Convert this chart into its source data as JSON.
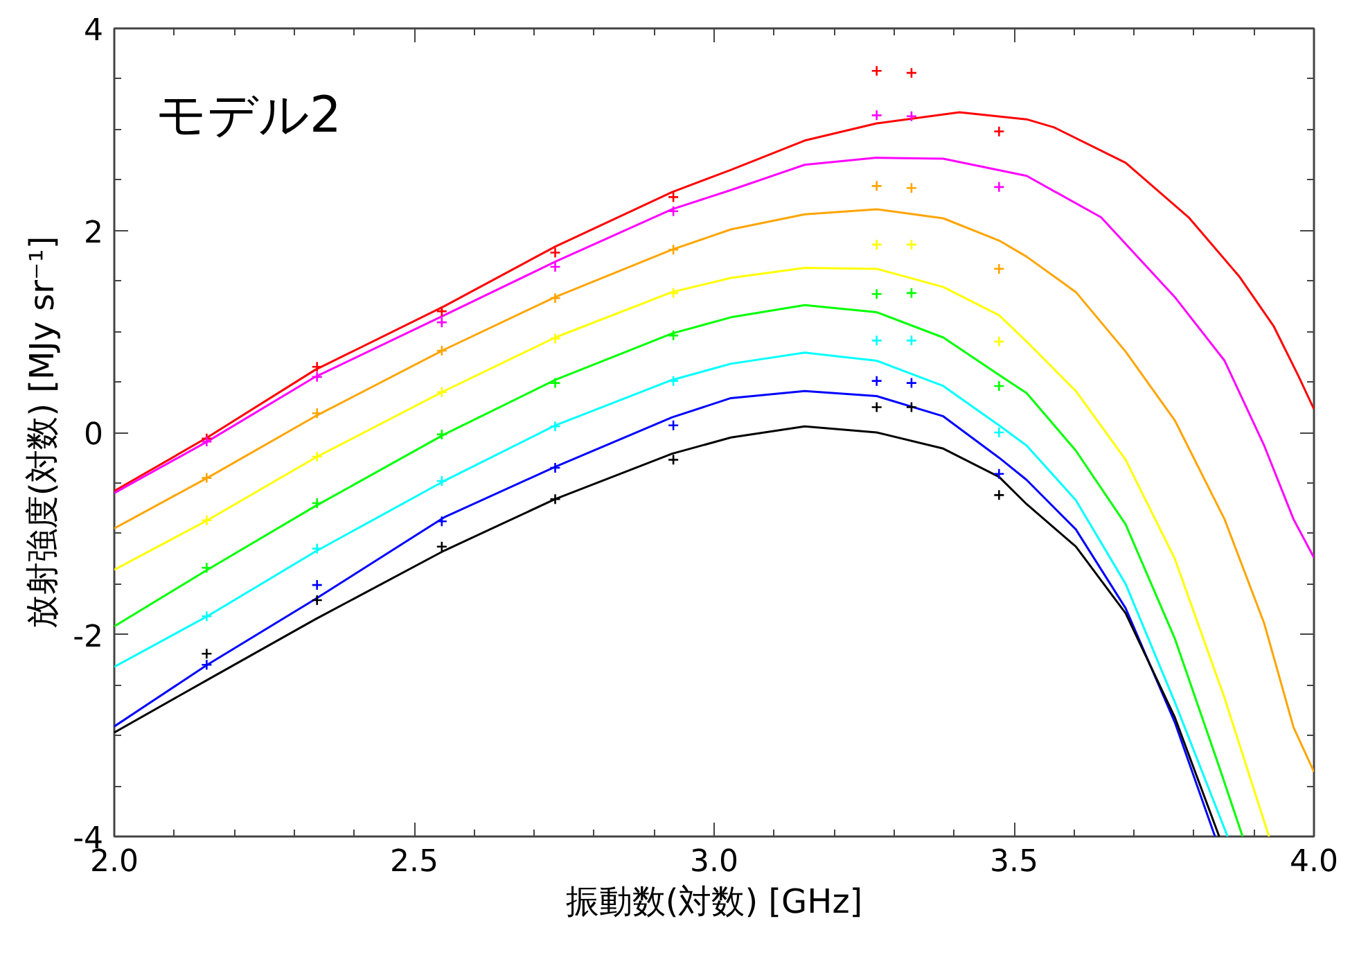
{
  "chart_data": {
    "type": "line",
    "xlabel": "振動数(対数) [GHz]",
    "ylabel": "放射強度(対数) [MJy sr⁻¹]",
    "annotations": [
      "モデル2"
    ],
    "xlim": [
      2.0,
      4.0
    ],
    "ylim": [
      -4,
      4
    ],
    "xticks": [
      {
        "value": 2.0,
        "label": "2.0"
      },
      {
        "value": 2.1,
        "label": null
      },
      {
        "value": 2.2,
        "label": null
      },
      {
        "value": 2.3,
        "label": null
      },
      {
        "value": 2.4,
        "label": null
      },
      {
        "value": 2.5,
        "label": "2.5"
      },
      {
        "value": 2.6,
        "label": null
      },
      {
        "value": 2.7,
        "label": null
      },
      {
        "value": 2.8,
        "label": null
      },
      {
        "value": 2.9,
        "label": null
      },
      {
        "value": 3.0,
        "label": "3.0"
      },
      {
        "value": 3.1,
        "label": null
      },
      {
        "value": 3.2,
        "label": null
      },
      {
        "value": 3.3,
        "label": null
      },
      {
        "value": 3.4,
        "label": null
      },
      {
        "value": 3.5,
        "label": "3.5"
      },
      {
        "value": 3.6,
        "label": null
      },
      {
        "value": 3.7,
        "label": null
      },
      {
        "value": 3.8,
        "label": null
      },
      {
        "value": 3.9,
        "label": null
      },
      {
        "value": 4.0,
        "label": "4.0"
      }
    ],
    "yticks": [
      -4,
      {
        "value": -3.5,
        "label": null
      },
      {
        "value": -3,
        "label": null
      },
      {
        "value": -2.5,
        "label": null
      },
      -2,
      {
        "value": -1.5,
        "label": null
      },
      {
        "value": -1,
        "label": null
      },
      {
        "value": -0.5,
        "label": null
      },
      0,
      {
        "value": 0.5,
        "label": null
      },
      {
        "value": 1,
        "label": null
      },
      {
        "value": 1.5,
        "label": null
      },
      2,
      {
        "value": 2.5,
        "label": null
      },
      {
        "value": 3,
        "label": null
      },
      {
        "value": 3.5,
        "label": null
      },
      4
    ],
    "grid": false,
    "line_style": "solid",
    "series": [
      {
        "marker": "none",
        "color": "#ff0000",
        "x": [
          2.0,
          2.155,
          2.335,
          2.55,
          2.735,
          2.93,
          3.028,
          3.151,
          3.271,
          3.409,
          3.521,
          3.567,
          3.686,
          3.791,
          3.876,
          3.933,
          3.974,
          4.0
        ],
        "values": [
          -0.58,
          -0.05,
          0.62,
          1.25,
          1.84,
          2.38,
          2.6,
          2.89,
          3.06,
          3.17,
          3.1,
          3.02,
          2.67,
          2.13,
          1.54,
          1.05,
          0.56,
          0.23
        ]
      },
      {
        "marker": "none",
        "color": "#ff00ff",
        "x": [
          2.0,
          2.155,
          2.335,
          2.55,
          2.735,
          2.93,
          3.028,
          3.151,
          3.271,
          3.382,
          3.521,
          3.645,
          3.768,
          3.851,
          3.917,
          3.966,
          4.0
        ],
        "values": [
          -0.6,
          -0.09,
          0.55,
          1.16,
          1.69,
          2.21,
          2.4,
          2.65,
          2.72,
          2.71,
          2.54,
          2.13,
          1.34,
          0.71,
          -0.13,
          -0.86,
          -1.24
        ]
      },
      {
        "marker": "none",
        "color": "#ffa500",
        "x": [
          2.0,
          2.155,
          2.335,
          2.55,
          2.735,
          2.93,
          3.028,
          3.151,
          3.271,
          3.382,
          3.475,
          3.521,
          3.603,
          3.686,
          3.768,
          3.851,
          3.917,
          3.966,
          4.0
        ],
        "values": [
          -0.95,
          -0.45,
          0.16,
          0.82,
          1.34,
          1.81,
          2.01,
          2.16,
          2.21,
          2.12,
          1.9,
          1.74,
          1.39,
          0.8,
          0.12,
          -0.86,
          -1.89,
          -2.92,
          -3.36
        ]
      },
      {
        "marker": "none",
        "color": "#ffff00",
        "x": [
          2.0,
          2.155,
          2.335,
          2.55,
          2.735,
          2.93,
          3.028,
          3.151,
          3.271,
          3.382,
          3.475,
          3.521,
          3.603,
          3.686,
          3.768,
          3.851,
          3.925
        ],
        "values": [
          -1.36,
          -0.87,
          -0.25,
          0.41,
          0.94,
          1.39,
          1.53,
          1.63,
          1.62,
          1.44,
          1.16,
          0.9,
          0.41,
          -0.27,
          -1.25,
          -2.63,
          -4.0
        ]
      },
      {
        "marker": "none",
        "color": "#00ff00",
        "x": [
          2.0,
          2.155,
          2.335,
          2.55,
          2.735,
          2.93,
          3.028,
          3.151,
          3.271,
          3.382,
          3.475,
          3.521,
          3.603,
          3.686,
          3.768,
          3.842,
          3.881
        ],
        "values": [
          -1.92,
          -1.36,
          -0.73,
          -0.02,
          0.52,
          0.98,
          1.14,
          1.26,
          1.19,
          0.94,
          0.57,
          0.39,
          -0.18,
          -0.91,
          -2.04,
          -3.31,
          -4.0
        ]
      },
      {
        "marker": "none",
        "color": "#00ffff",
        "x": [
          2.0,
          2.155,
          2.335,
          2.55,
          2.735,
          2.93,
          3.028,
          3.151,
          3.271,
          3.382,
          3.475,
          3.521,
          3.603,
          3.686,
          3.768,
          3.856
        ],
        "values": [
          -2.32,
          -1.82,
          -1.18,
          -0.48,
          0.07,
          0.52,
          0.68,
          0.79,
          0.71,
          0.46,
          0.07,
          -0.13,
          -0.67,
          -1.5,
          -2.67,
          -4.0
        ]
      },
      {
        "marker": "none",
        "color": "#0000ff",
        "x": [
          2.0,
          2.155,
          2.335,
          2.55,
          2.735,
          2.93,
          3.028,
          3.151,
          3.271,
          3.382,
          3.475,
          3.521,
          3.603,
          3.686,
          3.768,
          3.835
        ],
        "values": [
          -2.91,
          -2.3,
          -1.65,
          -0.84,
          -0.34,
          0.15,
          0.34,
          0.41,
          0.36,
          0.16,
          -0.25,
          -0.47,
          -0.96,
          -1.74,
          -2.87,
          -4.0
        ]
      },
      {
        "marker": "none",
        "color": "#000000",
        "x": [
          2.0,
          2.155,
          2.335,
          2.55,
          2.735,
          2.93,
          3.028,
          3.151,
          3.271,
          3.382,
          3.475,
          3.521,
          3.603,
          3.686,
          3.768,
          3.842
        ],
        "values": [
          -2.97,
          -2.45,
          -1.85,
          -1.17,
          -0.66,
          -0.21,
          -0.05,
          0.06,
          0.0,
          -0.16,
          -0.44,
          -0.71,
          -1.13,
          -1.79,
          -2.82,
          -4.0
        ]
      },
      {
        "type": "scatter",
        "marker": "cross",
        "color": "#ff0000",
        "x": [
          2.154,
          2.338,
          2.546,
          2.735,
          2.932,
          3.271,
          3.329,
          3.475
        ],
        "values": [
          -0.06,
          0.65,
          1.2,
          1.78,
          2.33,
          3.58,
          3.56,
          2.98
        ]
      },
      {
        "type": "scatter",
        "marker": "cross",
        "color": "#ff00ff",
        "x": [
          2.154,
          2.338,
          2.546,
          2.735,
          2.932,
          3.271,
          3.329,
          3.475
        ],
        "values": [
          -0.09,
          0.55,
          1.09,
          1.64,
          2.19,
          3.14,
          3.13,
          2.43
        ]
      },
      {
        "type": "scatter",
        "marker": "cross",
        "color": "#ffa500",
        "x": [
          2.154,
          2.338,
          2.546,
          2.735,
          2.932,
          3.271,
          3.329,
          3.475
        ],
        "values": [
          -0.45,
          0.19,
          0.81,
          1.33,
          1.81,
          2.44,
          2.42,
          1.62
        ]
      },
      {
        "type": "scatter",
        "marker": "cross",
        "color": "#ffff00",
        "x": [
          2.154,
          2.338,
          2.546,
          2.735,
          2.932,
          3.271,
          3.329,
          3.475
        ],
        "values": [
          -0.87,
          -0.24,
          0.4,
          0.93,
          1.38,
          1.86,
          1.86,
          0.9
        ]
      },
      {
        "type": "scatter",
        "marker": "cross",
        "color": "#00ff00",
        "x": [
          2.154,
          2.338,
          2.546,
          2.735,
          2.932,
          3.271,
          3.329,
          3.475
        ],
        "values": [
          -1.34,
          -0.7,
          -0.02,
          0.49,
          0.96,
          1.37,
          1.38,
          0.46
        ]
      },
      {
        "type": "scatter",
        "marker": "cross",
        "color": "#00ffff",
        "x": [
          2.154,
          2.338,
          2.546,
          2.735,
          2.932,
          3.271,
          3.329,
          3.475
        ],
        "values": [
          -1.82,
          -1.15,
          -0.48,
          0.06,
          0.51,
          0.91,
          0.91,
          0.0
        ]
      },
      {
        "type": "scatter",
        "marker": "cross",
        "color": "#0000ff",
        "x": [
          2.154,
          2.338,
          2.546,
          2.735,
          2.932,
          3.271,
          3.329,
          3.475
        ],
        "values": [
          -2.3,
          -1.51,
          -0.88,
          -0.35,
          0.07,
          0.51,
          0.49,
          -0.41
        ]
      },
      {
        "type": "scatter",
        "marker": "cross",
        "color": "#000000",
        "x": [
          2.154,
          2.338,
          2.546,
          2.735,
          2.932,
          3.271,
          3.329,
          3.475
        ],
        "values": [
          -2.19,
          -1.66,
          -1.13,
          -0.66,
          -0.27,
          0.25,
          0.25,
          -0.62
        ]
      }
    ]
  }
}
